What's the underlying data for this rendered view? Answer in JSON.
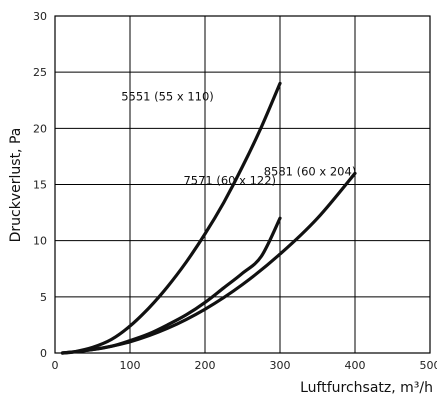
{
  "chart_data": {
    "type": "line",
    "xlabel": "Luftfurchsatz, m³/h",
    "ylabel": "Druckverlust, Pa",
    "xlim": [
      0,
      500
    ],
    "ylim": [
      0,
      30
    ],
    "x_ticks": [
      0,
      100,
      200,
      300,
      400,
      500
    ],
    "y_ticks": [
      0,
      5,
      10,
      15,
      20,
      25,
      30
    ],
    "grid": true,
    "series": [
      {
        "name": "5551 (55 x 110)",
        "x": [
          10,
          25,
          50,
          75,
          100,
          125,
          150,
          175,
          200,
          225,
          250,
          275,
          300
        ],
        "y": [
          0,
          0.1,
          0.5,
          1.2,
          2.4,
          4.0,
          5.9,
          8.1,
          10.6,
          13.4,
          16.6,
          20.1,
          24.0
        ]
      },
      {
        "name": "7571 (60 x 122)",
        "x": [
          10,
          25,
          50,
          75,
          100,
          125,
          150,
          175,
          200,
          225,
          250,
          275,
          300
        ],
        "y": [
          0,
          0.1,
          0.3,
          0.6,
          1.1,
          1.7,
          2.5,
          3.4,
          4.5,
          5.8,
          7.1,
          8.6,
          12.0
        ]
      },
      {
        "name": "8581 (60 x 204)",
        "x": [
          10,
          50,
          100,
          150,
          200,
          250,
          300,
          350,
          400
        ],
        "y": [
          0,
          0.3,
          1.0,
          2.2,
          3.9,
          6.1,
          8.8,
          12.0,
          16.0
        ]
      }
    ],
    "series_label_positions": [
      {
        "x": 150,
        "y": 22.5
      },
      {
        "x": 233,
        "y": 15.0
      },
      {
        "x": 340,
        "y": 15.8
      }
    ]
  }
}
